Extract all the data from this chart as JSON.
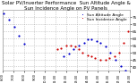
{
  "title": "Solar PV/Inverter Performance  Sun Altitude Angle & Sun Incidence Angle on PV Panels",
  "legend_labels": [
    "Sun Altitude Angle",
    "Sun Incidence Angle"
  ],
  "legend_colors": [
    "#0000cc",
    "#cc0000"
  ],
  "bg_color": "#ffffff",
  "plot_bg_color": "#ffffff",
  "grid_color": "#aaaaaa",
  "ylim": [
    37,
    80
  ],
  "title_fontsize": 4.0,
  "legend_fontsize": 3.2,
  "sun_altitude_x": [
    0.01,
    0.05,
    0.09,
    0.13,
    0.17,
    0.48,
    0.52,
    0.56,
    0.6,
    0.64,
    0.67,
    0.7,
    0.74,
    0.77,
    0.81,
    0.85,
    0.89,
    0.93,
    0.97
  ],
  "sun_altitude_y": [
    78,
    73,
    68,
    62,
    56,
    47,
    49,
    52,
    55,
    57,
    59,
    59,
    58,
    57,
    54,
    50,
    45,
    40,
    37
  ],
  "sun_incidence_x": [
    0.43,
    0.46,
    0.5,
    0.54,
    0.57,
    0.6,
    0.63,
    0.67,
    0.7,
    0.73,
    0.77,
    0.81,
    0.84,
    0.88,
    0.92,
    0.95,
    0.99
  ],
  "sun_incidence_y": [
    52,
    53,
    55,
    55,
    54,
    52,
    50,
    48,
    47,
    46,
    45,
    45,
    46,
    47,
    50,
    57,
    65
  ],
  "yticks": [
    40,
    45,
    50,
    55,
    60,
    65,
    70,
    75
  ],
  "xtick_labels": [
    "6:00",
    "7:00",
    "8:00",
    "9:00",
    "10:00",
    "11:00",
    "12:00",
    "13:00",
    "14:00",
    "15:00",
    "16:00",
    "17:00",
    "18:00"
  ],
  "xtick_positions": [
    0.0,
    0.083,
    0.167,
    0.25,
    0.333,
    0.417,
    0.5,
    0.583,
    0.667,
    0.75,
    0.833,
    0.917,
    1.0
  ],
  "tick_color": "#000000",
  "spine_color": "#888888",
  "axis_label_color": "#000000"
}
